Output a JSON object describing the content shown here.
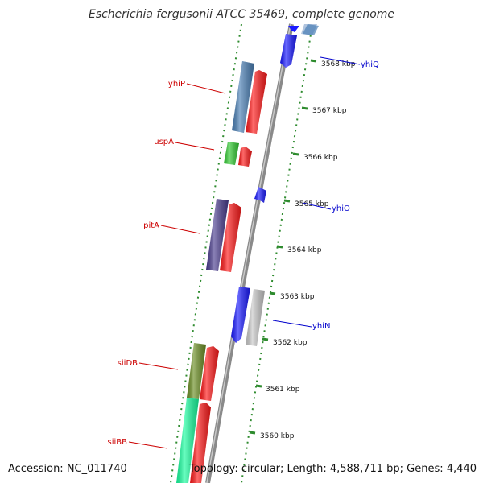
{
  "title": "Escherichia fergusonii ATCC 35469, complete genome",
  "accession": "Accession: NC_011740",
  "topology": "Topology: circular; Length: 4,588,711 bp; Genes: 4,440",
  "colors": {
    "background": "#ffffff",
    "backbone": "#8a8a8a",
    "dotted_ring": "#2e8b2e",
    "forward_label": "#cc0000",
    "reverse_label": "#0000cc"
  },
  "ticks": [
    "3568 kbp",
    "3567 kbp",
    "3566 kbp",
    "3565 kbp",
    "3564 kbp",
    "3563 kbp",
    "3562 kbp",
    "3561 kbp",
    "3560 kbp"
  ],
  "labels": [
    {
      "text": "yhiQ",
      "strand": "reverse"
    },
    {
      "text": "yhiP",
      "strand": "forward"
    },
    {
      "text": "uspA",
      "strand": "forward"
    },
    {
      "text": "yhiO",
      "strand": "reverse"
    },
    {
      "text": "pitA",
      "strand": "forward"
    },
    {
      "text": "yhiN",
      "strand": "reverse"
    },
    {
      "text": "siiDB",
      "strand": "forward"
    },
    {
      "text": "siiBB",
      "strand": "forward"
    }
  ]
}
